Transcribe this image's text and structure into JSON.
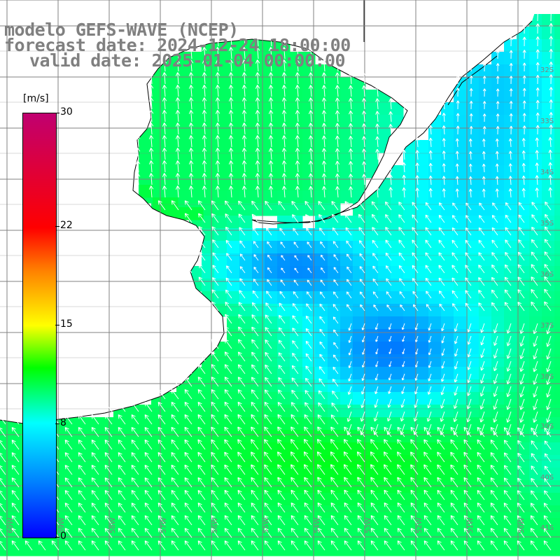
{
  "title": {
    "line1": "modelo GEFS-WAVE (NCEP)",
    "line2": "forecast date: 2024-12-24 18:00:00",
    "line3": "valid date: 2025-01-04 00:00:00"
  },
  "colorbar": {
    "unit": "[m/s]",
    "ticks": [
      {
        "value": 30,
        "label": "30"
      },
      {
        "value": 22,
        "label": "22"
      },
      {
        "value": 15,
        "label": "15"
      },
      {
        "value": 8,
        "label": "8"
      },
      {
        "value": 0,
        "label": "0"
      }
    ],
    "range": [
      0,
      30
    ],
    "stops": [
      "#0000ff",
      "#0080ff",
      "#00ffff",
      "#00ff00",
      "#ffff00",
      "#ff8000",
      "#ff0000",
      "#c00070"
    ]
  },
  "axes": {
    "lat_labels": [
      "32S",
      "33S",
      "34S",
      "35S",
      "36S",
      "37S",
      "38S",
      "39S",
      "40S",
      "41S"
    ],
    "lon_labels": [
      "60W",
      "59W",
      "58W",
      "57W",
      "56W",
      "55W",
      "54W",
      "53W",
      "52W",
      "51W",
      "50W"
    ]
  },
  "colors": {
    "land": "#ffffff",
    "coast": "#000000",
    "grid": "#808080",
    "arrow": "#ffffff",
    "label": "#808080"
  }
}
